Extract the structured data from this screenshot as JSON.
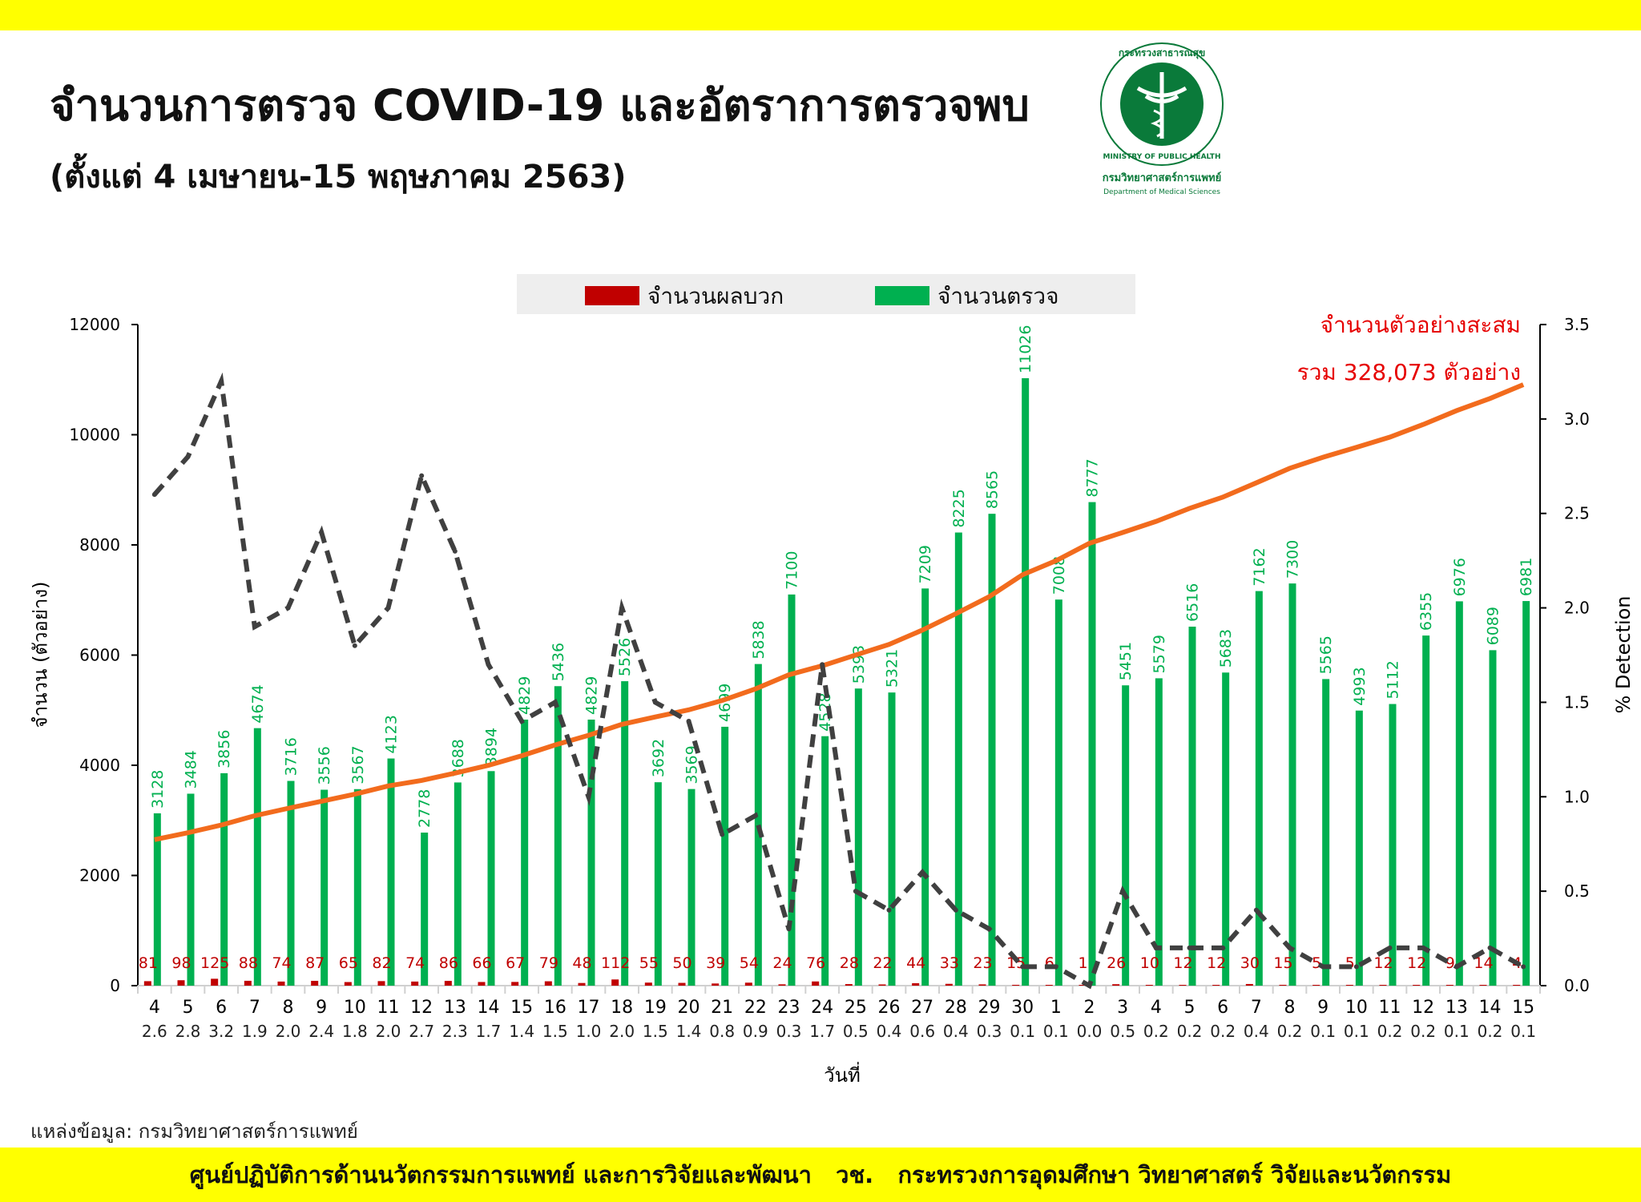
{
  "header": {
    "title": "จำนวนการตรวจ COVID-19 และอัตราการตรวจพบ",
    "subtitle": "(ตั้งแต่ 4 เมษายน-15 พฤษภาคม 2563)",
    "logo": {
      "ring_text": "กระทรวงสาธารณสุข MINISTRY OF PUBLIC HEALTH",
      "dept_thai": "กรมวิทยาศาสตร์การแพทย์",
      "dept_en": "Department of Medical Sciences"
    }
  },
  "footer": {
    "source": "แหล่งข้อมูล: กรมวิทยาศาสตร์การแพทย์",
    "banner": "ศูนย์ปฏิบัติการด้านนวัตกรรมการแพทย์ และการวิจัยและพัฒนา   วช.   กระทรวงการอุดมศึกษา วิทยาศาสตร์ วิจัยและนวัตกรรม"
  },
  "chart_data": {
    "type": "bar",
    "xlabel": "วันที่",
    "ylabel": "จำนวน (ตัวอย่าง)",
    "y2label": "% Detection",
    "ylim": [
      0,
      12000
    ],
    "yticks": [
      0,
      2000,
      4000,
      6000,
      8000,
      10000,
      12000
    ],
    "y2lim": [
      0,
      3.5
    ],
    "y2ticks": [
      "0.0",
      "0.5",
      "1.0",
      "1.5",
      "2.0",
      "2.5",
      "3.0",
      "3.5"
    ],
    "legend": {
      "position": "top",
      "items": [
        {
          "name": "จำนวนผลบวก",
          "color": "#c00000"
        },
        {
          "name": "จำนวนตรวจ",
          "color": "#00b050"
        }
      ]
    },
    "categories": [
      "4",
      "5",
      "6",
      "7",
      "8",
      "9",
      "10",
      "11",
      "12",
      "13",
      "14",
      "15",
      "16",
      "17",
      "18",
      "19",
      "20",
      "21",
      "22",
      "23",
      "24",
      "25",
      "26",
      "27",
      "28",
      "29",
      "30",
      "1",
      "2",
      "3",
      "4",
      "5",
      "6",
      "7",
      "8",
      "9",
      "10",
      "11",
      "12",
      "13",
      "14",
      "15"
    ],
    "series": [
      {
        "name": "จำนวนตรวจ",
        "type": "bar",
        "color": "#00b050",
        "values": [
          3128,
          3484,
          3856,
          4674,
          3716,
          3556,
          3567,
          4123,
          2778,
          3688,
          3894,
          4829,
          5436,
          4829,
          5526,
          3692,
          3569,
          4699,
          5838,
          7100,
          4528,
          5393,
          5321,
          7209,
          8225,
          8565,
          11026,
          7008,
          8777,
          5451,
          5579,
          6516,
          5683,
          7162,
          7300,
          5565,
          4993,
          5112,
          6355,
          6976,
          6089,
          6981
        ]
      },
      {
        "name": "จำนวนผลบวก",
        "type": "bar",
        "color": "#c00000",
        "values": [
          81,
          98,
          125,
          88,
          74,
          87,
          65,
          82,
          74,
          86,
          66,
          67,
          79,
          48,
          112,
          55,
          50,
          39,
          54,
          24,
          76,
          28,
          22,
          44,
          33,
          23,
          15,
          6,
          1,
          26,
          10,
          12,
          12,
          30,
          15,
          5,
          5,
          12,
          12,
          9,
          14,
          4
        ]
      },
      {
        "type": "line",
        "axis": "right",
        "style": "dashed",
        "color": "#404040",
        "values": [
          2.6,
          2.8,
          3.2,
          1.9,
          2.0,
          2.4,
          1.8,
          2.0,
          2.7,
          2.3,
          1.7,
          1.4,
          1.5,
          1.0,
          2.0,
          1.5,
          1.4,
          0.8,
          0.9,
          0.3,
          1.7,
          0.5,
          0.4,
          0.6,
          0.4,
          0.3,
          0.1,
          0.1,
          0.0,
          0.5,
          0.2,
          0.2,
          0.2,
          0.4,
          0.2,
          0.1,
          0.1,
          0.2,
          0.2,
          0.1,
          0.2,
          0.1
        ]
      },
      {
        "type": "line",
        "axis": "hidden",
        "style": "solid",
        "color": "#f26b1d",
        "description_label": "cumulative"
      }
    ],
    "annotation": {
      "line1": "จำนวนตัวอย่างสะสม",
      "line2": "รวม 328,073 ตัวอย่าง",
      "total": 328073,
      "color": "#e60000"
    }
  }
}
